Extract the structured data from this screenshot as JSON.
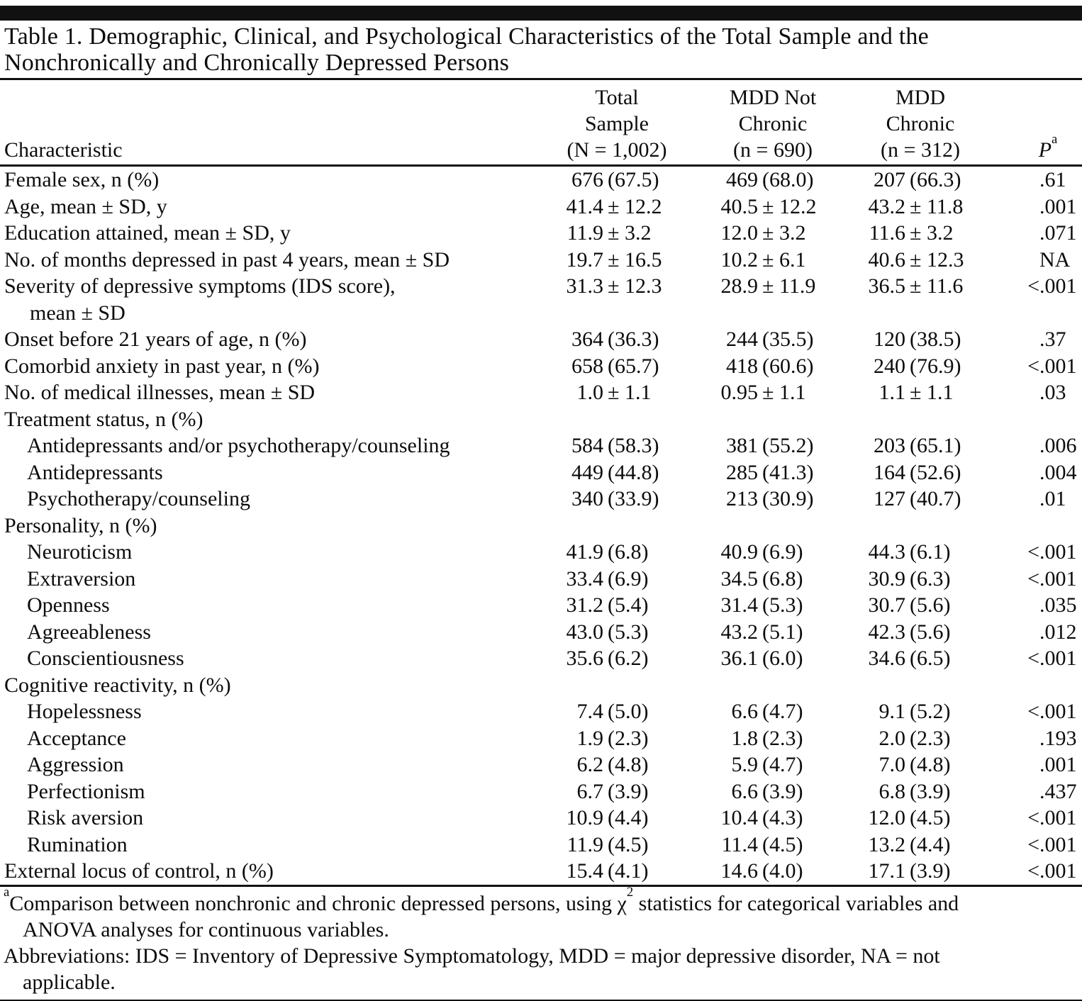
{
  "table": {
    "title_lines": [
      "Table 1. Demographic, Clinical, and Psychological Characteristics of the Total Sample and the",
      "Nonchronically and Chronically Depressed Persons"
    ],
    "columns": {
      "characteristic": "Characteristic",
      "groups": [
        {
          "key": "total",
          "lines": [
            "Total",
            "Sample",
            "(N = 1,002)"
          ]
        },
        {
          "key": "mdd-not-chronic",
          "lines": [
            "MDD Not",
            "Chronic",
            "(n = 690)"
          ]
        },
        {
          "key": "mdd-chronic",
          "lines": [
            "MDD",
            "Chronic",
            "(n = 312)"
          ]
        }
      ],
      "p_header": {
        "segments": [
          {
            "t": "P",
            "italic": true
          },
          {
            "t": "a",
            "sup": true
          }
        ]
      }
    },
    "rows": [
      {
        "label": "Female sex, n (%)",
        "indent": 0,
        "total": "676 (67.5)",
        "nonchronic": "469 (68.0)",
        "chronic": "207 (66.3)",
        "p": ".61"
      },
      {
        "label": "Age, mean ± SD, y",
        "indent": 0,
        "total": "41.4 ± 12.2",
        "nonchronic": "40.5 ± 12.2",
        "chronic": "43.2 ± 11.8",
        "p": ".001"
      },
      {
        "label": "Education attained, mean ± SD, y",
        "indent": 0,
        "total": "11.9 ± 3.2",
        "nonchronic": "12.0 ± 3.2",
        "chronic": "11.6 ± 3.2",
        "p": ".071"
      },
      {
        "label": "No. of months depressed in past 4 years, mean ± SD",
        "indent": 0,
        "total": "19.7 ± 16.5",
        "nonchronic": "10.2 ± 6.1",
        "chronic": "40.6 ± 12.3",
        "p": "NA"
      },
      {
        "label": "Severity of depressive symptoms (IDS score),",
        "label2": "mean ± SD",
        "indent": 0,
        "total": "31.3 ± 12.3",
        "nonchronic": "28.9 ± 11.9",
        "chronic": "36.5 ± 11.6",
        "p": "<.001"
      },
      {
        "label": "Onset before 21 years of age, n (%)",
        "indent": 0,
        "total": "364 (36.3)",
        "nonchronic": "244 (35.5)",
        "chronic": "120 (38.5)",
        "p": ".37"
      },
      {
        "label": "Comorbid anxiety in past year, n (%)",
        "indent": 0,
        "total": "658 (65.7)",
        "nonchronic": "418 (60.6)",
        "chronic": "240 (76.9)",
        "p": "<.001"
      },
      {
        "label": "No. of medical illnesses, mean ± SD",
        "indent": 0,
        "total": "1.0 ± 1.1",
        "nonchronic": "0.95 ± 1.1",
        "chronic": "1.1 ± 1.1",
        "p": ".03"
      },
      {
        "label": "Treatment status, n (%)",
        "indent": 0,
        "total": "",
        "nonchronic": "",
        "chronic": "",
        "p": ""
      },
      {
        "label": "Antidepressants and/or psychotherapy/counseling",
        "indent": 1,
        "total": "584 (58.3)",
        "nonchronic": "381 (55.2)",
        "chronic": "203 (65.1)",
        "p": ".006"
      },
      {
        "label": "Antidepressants",
        "indent": 1,
        "total": "449 (44.8)",
        "nonchronic": "285 (41.3)",
        "chronic": "164 (52.6)",
        "p": ".004"
      },
      {
        "label": "Psychotherapy/counseling",
        "indent": 1,
        "total": "340 (33.9)",
        "nonchronic": "213 (30.9)",
        "chronic": "127 (40.7)",
        "p": ".01"
      },
      {
        "label": "Personality, n (%)",
        "indent": 0,
        "total": "",
        "nonchronic": "",
        "chronic": "",
        "p": ""
      },
      {
        "label": "Neuroticism",
        "indent": 1,
        "total": "41.9 (6.8)",
        "nonchronic": "40.9 (6.9)",
        "chronic": "44.3 (6.1)",
        "p": "<.001"
      },
      {
        "label": "Extraversion",
        "indent": 1,
        "total": "33.4 (6.9)",
        "nonchronic": "34.5 (6.8)",
        "chronic": "30.9 (6.3)",
        "p": "<.001"
      },
      {
        "label": "Openness",
        "indent": 1,
        "total": "31.2 (5.4)",
        "nonchronic": "31.4 (5.3)",
        "chronic": "30.7 (5.6)",
        "p": ".035"
      },
      {
        "label": "Agreeableness",
        "indent": 1,
        "total": "43.0 (5.3)",
        "nonchronic": "43.2 (5.1)",
        "chronic": "42.3 (5.6)",
        "p": ".012"
      },
      {
        "label": "Conscientiousness",
        "indent": 1,
        "total": "35.6 (6.2)",
        "nonchronic": "36.1 (6.0)",
        "chronic": "34.6 (6.5)",
        "p": "<.001"
      },
      {
        "label": "Cognitive reactivity, n (%)",
        "indent": 0,
        "total": "",
        "nonchronic": "",
        "chronic": "",
        "p": ""
      },
      {
        "label": "Hopelessness",
        "indent": 1,
        "total": "7.4 (5.0)",
        "nonchronic": "6.6 (4.7)",
        "chronic": "9.1 (5.2)",
        "p": "<.001"
      },
      {
        "label": "Acceptance",
        "indent": 1,
        "total": "1.9 (2.3)",
        "nonchronic": "1.8 (2.3)",
        "chronic": "2.0 (2.3)",
        "p": ".193"
      },
      {
        "label": "Aggression",
        "indent": 1,
        "total": "6.2 (4.8)",
        "nonchronic": "5.9 (4.7)",
        "chronic": "7.0 (4.8)",
        "p": ".001"
      },
      {
        "label": "Perfectionism",
        "indent": 1,
        "total": "6.7 (3.9)",
        "nonchronic": "6.6 (3.9)",
        "chronic": "6.8 (3.9)",
        "p": ".437"
      },
      {
        "label": "Risk aversion",
        "indent": 1,
        "total": "10.9 (4.4)",
        "nonchronic": "10.4 (4.3)",
        "chronic": "12.0 (4.5)",
        "p": "<.001"
      },
      {
        "label": "Rumination",
        "indent": 1,
        "total": "11.9 (4.5)",
        "nonchronic": "11.4 (4.5)",
        "chronic": "13.2 (4.4)",
        "p": "<.001"
      },
      {
        "label": "External locus of control, n (%)",
        "indent": 0,
        "total": "15.4 (4.1)",
        "nonchronic": "14.6 (4.0)",
        "chronic": "17.1 (3.9)",
        "p": "<.001"
      }
    ],
    "footnotes": [
      {
        "lines": [
          {
            "cont": false,
            "segments": [
              {
                "t": "a",
                "sup": true
              },
              {
                "t": "Comparison between nonchronic and chronic depressed persons, using χ"
              },
              {
                "t": "2",
                "sup": true
              },
              {
                "t": " statistics for categorical variables and"
              }
            ]
          },
          {
            "cont": true,
            "segments": [
              {
                "t": "ANOVA analyses for continuous variables."
              }
            ]
          }
        ]
      },
      {
        "lines": [
          {
            "cont": false,
            "segments": [
              {
                "t": "Abbreviations: IDS = Inventory of Depressive Symptomatology, MDD = major depressive disorder, NA = not"
              }
            ]
          },
          {
            "cont": true,
            "segments": [
              {
                "t": "applicable."
              }
            ]
          }
        ]
      }
    ]
  }
}
